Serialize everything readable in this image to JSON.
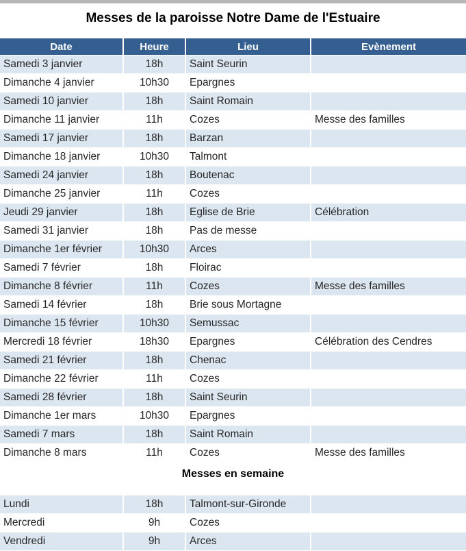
{
  "page": {
    "title": "Messes de la paroisse Notre Dame de l'Estuaire",
    "weekday_section_title": "Messes en semaine"
  },
  "colors": {
    "header_bg": "#365f91",
    "band_bg": "#dce6f1",
    "text": "#262626"
  },
  "schedule_table": {
    "headers": [
      "Date",
      "Heure",
      "Lieu",
      "Evènement"
    ],
    "rows": [
      [
        "Samedi 3 janvier",
        "18h",
        "Saint Seurin",
        ""
      ],
      [
        "Dimanche 4 janvier",
        "10h30",
        "Epargnes",
        ""
      ],
      [
        "Samedi 10 janvier",
        "18h",
        "Saint Romain",
        ""
      ],
      [
        "Dimanche 11 janvier",
        "11h",
        "Cozes",
        "Messe des familles"
      ],
      [
        "Samedi 17 janvier",
        "18h",
        "Barzan",
        ""
      ],
      [
        "Dimanche 18 janvier",
        "10h30",
        "Talmont",
        ""
      ],
      [
        "Samedi 24 janvier",
        "18h",
        "Boutenac",
        ""
      ],
      [
        "Dimanche 25 janvier",
        "11h",
        "Cozes",
        ""
      ],
      [
        "Jeudi 29 janvier",
        "18h",
        "Eglise de Brie",
        "Célébration"
      ],
      [
        "Samedi 31 janvier",
        "18h",
        "Pas de messe",
        ""
      ],
      [
        "Dimanche 1er février",
        "10h30",
        "Arces",
        ""
      ],
      [
        "Samedi 7 février",
        "18h",
        "Floirac",
        ""
      ],
      [
        "Dimanche 8 février",
        "11h",
        "Cozes",
        "Messe des familles"
      ],
      [
        "Samedi 14 février",
        "18h",
        "Brie sous Mortagne",
        ""
      ],
      [
        "Dimanche 15 février",
        "10h30",
        "Semussac",
        ""
      ],
      [
        "Mercredi 18 février",
        "18h30",
        "Epargnes",
        "Célébration des Cendres"
      ],
      [
        "Samedi 21 février",
        "18h",
        "Chenac",
        ""
      ],
      [
        "Dimanche 22 février",
        "11h",
        "Cozes",
        ""
      ],
      [
        "Samedi 28 février",
        "18h",
        "Saint Seurin",
        ""
      ],
      [
        "Dimanche 1er mars",
        "10h30",
        "Epargnes",
        ""
      ],
      [
        "Samedi 7 mars",
        "18h",
        "Saint Romain",
        ""
      ],
      [
        "Dimanche 8 mars",
        "11h",
        "Cozes",
        "Messe des familles"
      ]
    ]
  },
  "weekday_table": {
    "rows": [
      [
        "Lundi",
        "18h",
        "Talmont-sur-Gironde",
        ""
      ],
      [
        "Mercredi",
        "9h",
        "Cozes",
        ""
      ],
      [
        "Vendredi",
        "9h",
        "Arces",
        ""
      ]
    ]
  }
}
